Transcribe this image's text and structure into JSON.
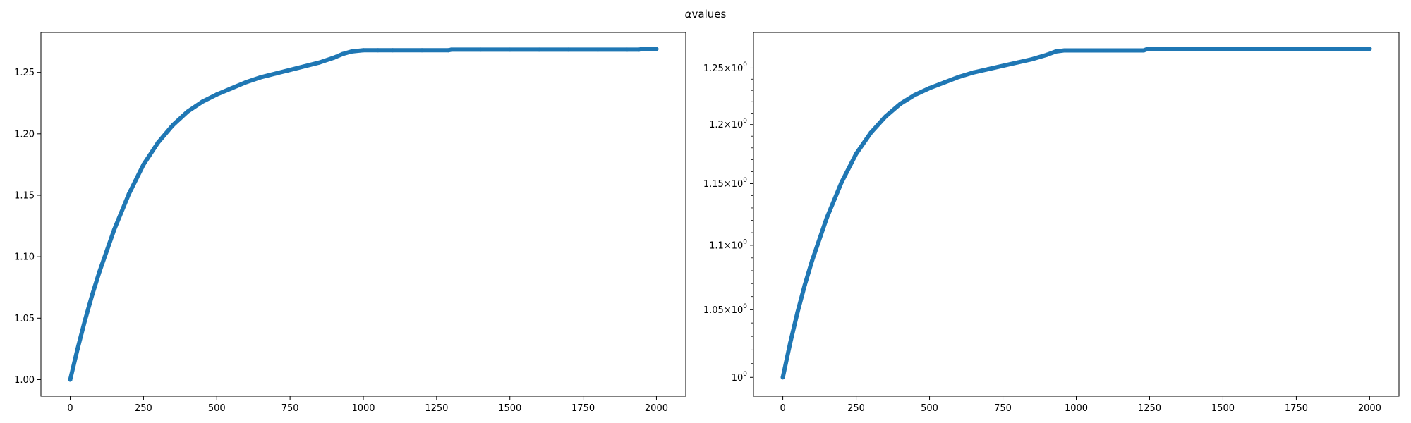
{
  "figure": {
    "title_symbol": "α",
    "title_text": "values"
  },
  "chart_data": [
    {
      "type": "scatter",
      "scale": "linear",
      "series_color": "#1f77b4",
      "xlim": [
        -100,
        2100
      ],
      "ylim": [
        0.9865,
        1.2825
      ],
      "xticks": [
        0,
        250,
        500,
        750,
        1000,
        1250,
        1500,
        1750,
        2000
      ],
      "xtick_labels": [
        "0",
        "250",
        "500",
        "750",
        "1000",
        "1250",
        "1500",
        "1750",
        "2000"
      ],
      "yticks": [
        1.0,
        1.05,
        1.1,
        1.15,
        1.2,
        1.25
      ],
      "ytick_labels": [
        "1.00",
        "1.05",
        "1.10",
        "1.15",
        "1.20",
        "1.25"
      ],
      "x": [
        0,
        25,
        50,
        75,
        100,
        150,
        200,
        250,
        300,
        350,
        400,
        450,
        500,
        550,
        600,
        650,
        700,
        750,
        800,
        850,
        900,
        930,
        960,
        1000,
        1050,
        1100,
        1200,
        1290,
        1300,
        1400,
        1500,
        1600,
        1700,
        1800,
        1900,
        1940,
        1950,
        2000
      ],
      "y": [
        1.0,
        1.025,
        1.048,
        1.069,
        1.088,
        1.122,
        1.151,
        1.175,
        1.193,
        1.207,
        1.218,
        1.226,
        1.232,
        1.237,
        1.242,
        1.246,
        1.249,
        1.252,
        1.255,
        1.258,
        1.262,
        1.265,
        1.267,
        1.268,
        1.268,
        1.268,
        1.268,
        1.268,
        1.2685,
        1.2685,
        1.2685,
        1.2685,
        1.2685,
        1.2685,
        1.2685,
        1.2685,
        1.269,
        1.269
      ]
    },
    {
      "type": "scatter",
      "scale": "log",
      "series_color": "#1f77b4",
      "xlim": [
        -100,
        2100
      ],
      "ylim": [
        0.9865,
        1.2825
      ],
      "xticks": [
        0,
        250,
        500,
        750,
        1000,
        1250,
        1500,
        1750,
        2000
      ],
      "xtick_labels": [
        "0",
        "250",
        "500",
        "750",
        "1000",
        "1250",
        "1500",
        "1750",
        "2000"
      ],
      "yticks": [
        1.0,
        1.05,
        1.1,
        1.15,
        1.2,
        1.25
      ],
      "ytick_mantissas": [
        "",
        "1.05",
        "1.1",
        "1.15",
        "1.2",
        "1.25"
      ],
      "ytick_base": "10",
      "ytick_exponent": "0",
      "ytick_times": "×",
      "x": [
        0,
        25,
        50,
        75,
        100,
        150,
        200,
        250,
        300,
        350,
        400,
        450,
        500,
        550,
        600,
        650,
        700,
        750,
        800,
        850,
        900,
        930,
        960,
        1000,
        1050,
        1100,
        1200,
        1230,
        1240,
        1300,
        1400,
        1500,
        1600,
        1700,
        1800,
        1900,
        1940,
        1950,
        2000
      ],
      "y": [
        1.0,
        1.025,
        1.048,
        1.069,
        1.088,
        1.122,
        1.151,
        1.175,
        1.193,
        1.207,
        1.218,
        1.226,
        1.232,
        1.237,
        1.242,
        1.246,
        1.249,
        1.252,
        1.255,
        1.258,
        1.262,
        1.265,
        1.266,
        1.266,
        1.266,
        1.266,
        1.266,
        1.266,
        1.267,
        1.267,
        1.267,
        1.267,
        1.267,
        1.267,
        1.267,
        1.267,
        1.267,
        1.2675,
        1.2675
      ]
    }
  ]
}
